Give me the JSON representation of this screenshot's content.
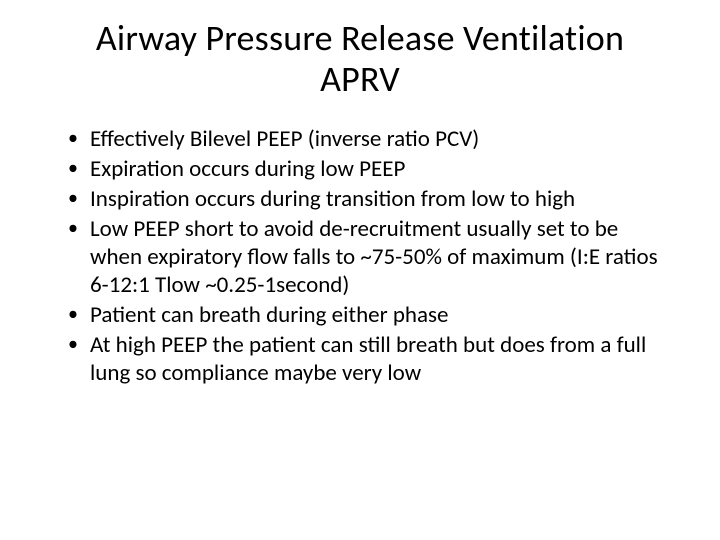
{
  "slide": {
    "title_line1": "Airway Pressure Release Ventilation",
    "title_line2": "APRV",
    "bullets": [
      "Effectively Bilevel PEEP (inverse ratio PCV)",
      "Expiration occurs during low PEEP",
      "Inspiration occurs during transition from low to high",
      "Low PEEP short to avoid de-recruitment usually set to be when expiratory flow falls to ~75-50% of maximum (I:E ratios 6-12:1 Tlow ~0.25-1second)",
      "Patient can breath during either phase",
      "At high PEEP the patient can still breath but does from a full lung so compliance maybe very low"
    ]
  },
  "style": {
    "background_color": "#ffffff",
    "text_color": "#000000",
    "title_fontsize": 36,
    "body_fontsize": 23,
    "font_family": "Calibri"
  }
}
